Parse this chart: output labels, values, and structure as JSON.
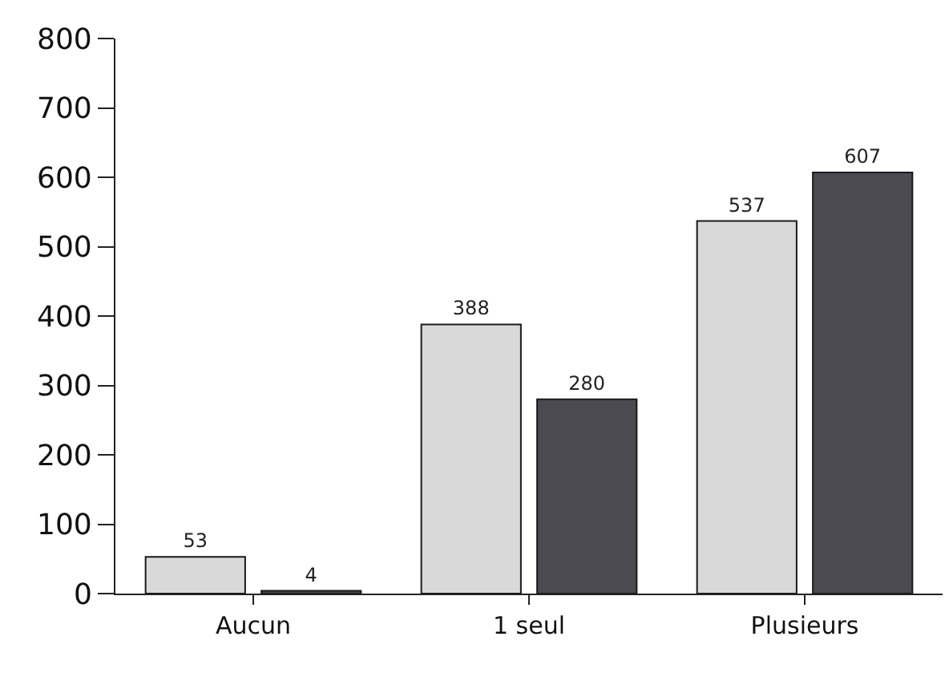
{
  "chart_data": {
    "type": "bar",
    "categories": [
      "Aucun",
      "1 seul",
      "Plusieurs"
    ],
    "series": [
      {
        "color": "#d9d9d9",
        "values": [
          53,
          388,
          537
        ]
      },
      {
        "color": "#4a4a50",
        "values": [
          4,
          280,
          607
        ]
      }
    ],
    "ylim": [
      0,
      800
    ],
    "yticks": [
      0,
      100,
      200,
      300,
      400,
      500,
      600,
      700,
      800
    ],
    "data_labels": true
  }
}
